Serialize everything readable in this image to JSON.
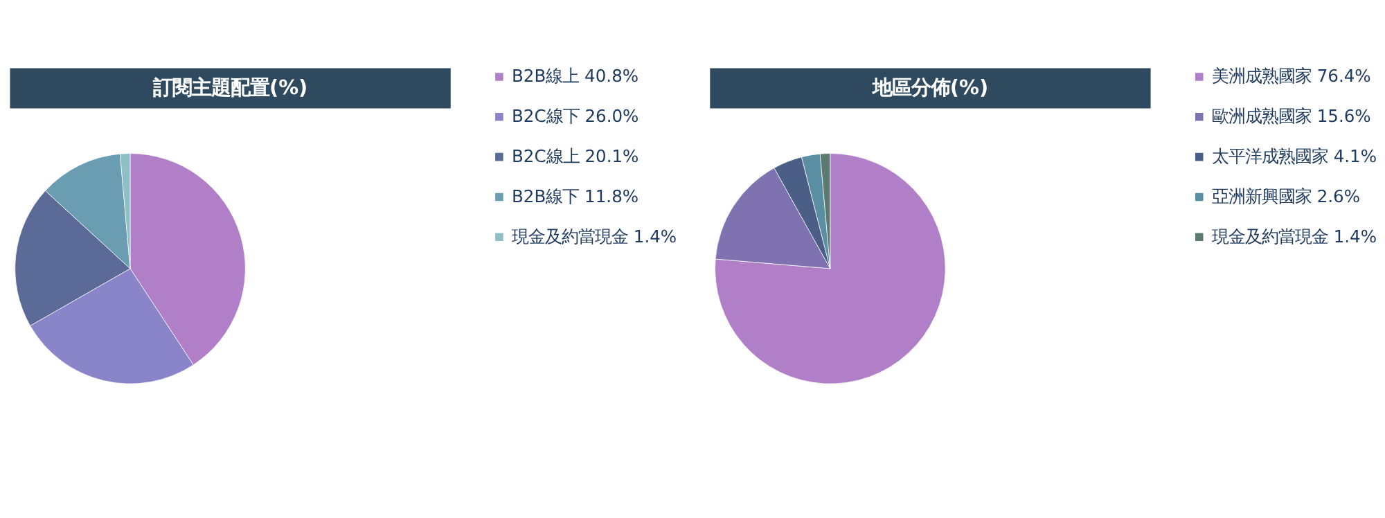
{
  "chart_data": [
    {
      "type": "pie",
      "title": "訂閱主題配置(%)",
      "categories": [
        "B2B線上",
        "B2C線下",
        "B2C線上",
        "B2B線下",
        "現金及約當現金"
      ],
      "values": [
        40.8,
        26.0,
        20.1,
        11.8,
        1.4
      ],
      "value_labels": [
        "40.8%",
        "26.0%",
        "20.1%",
        "11.8%",
        "1.4%"
      ],
      "colors": [
        "#b07fc8",
        "#8a84c9",
        "#5b6a96",
        "#6a9db2",
        "#8dbfc4"
      ],
      "legend": "right"
    },
    {
      "type": "pie",
      "title": "地區分佈(%)",
      "categories": [
        "美洲成熟國家",
        "歐洲成熟國家",
        "太平洋成熟國家",
        "亞洲新興國家",
        "現金及約當現金"
      ],
      "values": [
        76.4,
        15.6,
        4.1,
        2.6,
        1.4
      ],
      "value_labels": [
        "76.4%",
        "15.6%",
        "4.1%",
        "2.6%",
        "1.4%"
      ],
      "colors": [
        "#b07fc8",
        "#7e72b0",
        "#4b5f86",
        "#5a8ea3",
        "#5b7a70"
      ],
      "legend": "right"
    }
  ]
}
